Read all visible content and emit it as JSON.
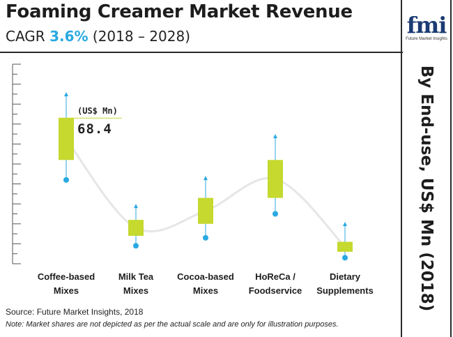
{
  "header": {
    "title": "Foaming Creamer Market Revenue",
    "cagr_prefix": "CAGR",
    "cagr_value": "3.6%",
    "cagr_period": "(2018 – 2028)"
  },
  "logo": {
    "mark": "fmi",
    "tagline": "Future Market Insights"
  },
  "side_label": "By End-use, US$ Mn (2018)",
  "footer": {
    "source": "Source: Future Market Insights, 2018",
    "note": "Note: Market shares are not depicted as per the actual scale and are only for illustration purposes."
  },
  "colors": {
    "box": "#c5d92f",
    "whisker": "#29a9e1",
    "curve": "#e6e6e6",
    "axis": "#555555"
  },
  "chart_data": {
    "type": "box",
    "categories": [
      [
        "Coffee-based",
        "Mixes"
      ],
      [
        "Milk Tea",
        "Mixes"
      ],
      [
        "Cocoa-based",
        "Mixes"
      ],
      [
        "HoReCa /",
        "Foodservice"
      ],
      [
        "Dietary",
        "Supplements"
      ]
    ],
    "highlight": {
      "category_index": 0,
      "unit": "(US$ Mn)",
      "value": "68.4"
    },
    "ylim": [
      0,
      100
    ],
    "series": [
      {
        "low": 42,
        "q1": 52,
        "q3": 73,
        "high": 86
      },
      {
        "low": 9,
        "q1": 14,
        "q3": 22,
        "high": 30
      },
      {
        "low": 13,
        "q1": 20,
        "q3": 33,
        "high": 44
      },
      {
        "low": 25,
        "q1": 33,
        "q3": 52,
        "high": 65
      },
      {
        "low": 3,
        "q1": 6,
        "q3": 11,
        "high": 21
      }
    ]
  }
}
